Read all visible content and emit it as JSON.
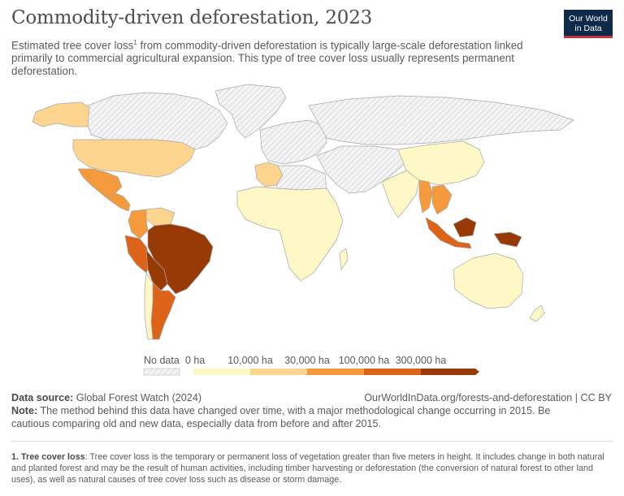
{
  "header": {
    "title": "Commodity-driven deforestation, 2023",
    "subtitle_pre": "Estimated tree cover loss",
    "subtitle_sup": "1",
    "subtitle_post": " from commodity-driven deforestation is typically large-scale deforestation linked primarily to commercial agricultural expansion. This type of tree cover loss usually represents permanent deforestation.",
    "logo_line1": "Our World",
    "logo_line2": "in Data"
  },
  "legend": {
    "no_data_label": "No data",
    "bins": [
      {
        "label": "0 ha",
        "color": "#fef7c6"
      },
      {
        "label": "10,000 ha",
        "color": "#fdd58e"
      },
      {
        "label": "30,000 ha",
        "color": "#f59a3c"
      },
      {
        "label": "100,000 ha",
        "color": "#dc6317"
      },
      {
        "label": "300,000 ha",
        "color": "#973a05"
      }
    ]
  },
  "colors": {
    "no_data": "#f2f2f2",
    "hatch": "#c9c9c9",
    "border": "#a8a8a8",
    "bin0": "#fef7c6",
    "bin1": "#fdd58e",
    "bin2": "#f59a3c",
    "bin3": "#dc6317",
    "bin4": "#973a05"
  },
  "map_regions": [
    {
      "name": "Canada",
      "bin": "no_data"
    },
    {
      "name": "Alaska",
      "bin": 1
    },
    {
      "name": "United States",
      "bin": 1
    },
    {
      "name": "Mexico",
      "bin": 2
    },
    {
      "name": "Central America",
      "bin": 2
    },
    {
      "name": "Colombia",
      "bin": 2
    },
    {
      "name": "Venezuela",
      "bin": 1
    },
    {
      "name": "Peru",
      "bin": 3
    },
    {
      "name": "Brazil",
      "bin": 4
    },
    {
      "name": "Bolivia",
      "bin": 4
    },
    {
      "name": "Paraguay",
      "bin": 4
    },
    {
      "name": "Argentina",
      "bin": 3
    },
    {
      "name": "Chile",
      "bin": 0
    },
    {
      "name": "Greenland",
      "bin": "no_data"
    },
    {
      "name": "Europe",
      "bin": "no_data"
    },
    {
      "name": "Russia",
      "bin": "no_data"
    },
    {
      "name": "Algeria",
      "bin": 1
    },
    {
      "name": "Africa",
      "bin": 0
    },
    {
      "name": "Middle East",
      "bin": "no_data"
    },
    {
      "name": "China",
      "bin": 0
    },
    {
      "name": "India",
      "bin": 0
    },
    {
      "name": "Myanmar",
      "bin": 2
    },
    {
      "name": "Thailand",
      "bin": 2
    },
    {
      "name": "Indonesia",
      "bin": 3
    },
    {
      "name": "Borneo",
      "bin": 4
    },
    {
      "name": "Papua New Guinea",
      "bin": 4
    },
    {
      "name": "Australia",
      "bin": 0
    },
    {
      "name": "New Zealand",
      "bin": 0
    }
  ],
  "footer": {
    "source_label": "Data source:",
    "source_text": " Global Forest Watch (2024)",
    "url": "OurWorldInData.org/forests-and-deforestation | CC BY",
    "note_label": "Note:",
    "note_text": " The method behind this data have changed over time, with a major methodological change occurring in 2015. Be cautious comparing old and new data, especially data from before and after 2015.",
    "footnote_label": "1. Tree cover loss",
    "footnote_text": ": Tree cover loss is the temporary or permanent loss of vegetation greater than five meters in height. It includes change in both natural and planted forest and may be the result of human activities, including timber harvesting or deforestation (the conversion of natural forest to other land uses), as well as natural causes of tree cover loss such as disease or storm damage."
  }
}
